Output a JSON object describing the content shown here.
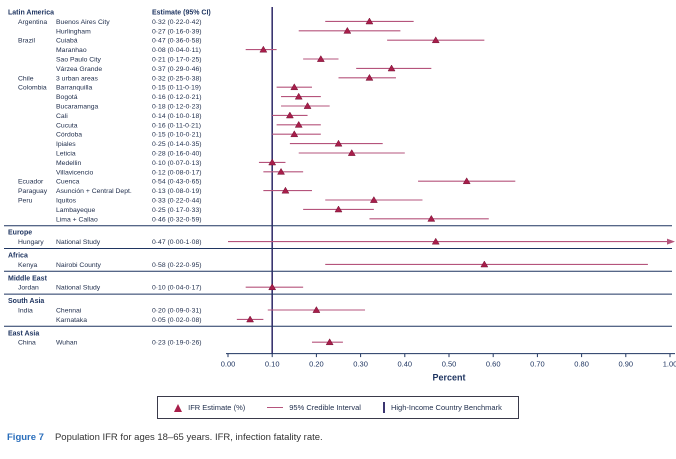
{
  "colors": {
    "accent": "#a81e4a",
    "accent_dark": "#741235",
    "ci": "#b5547c",
    "navy": "#1f3561",
    "text": "#22304e",
    "benchmark": "#3a3570",
    "figure_blue": "#2a6ebb"
  },
  "chart_data": {
    "type": "forest",
    "title": "",
    "xlabel": "Percent",
    "ylabel": "",
    "xlim": [
      0,
      1.0
    ],
    "grid": false,
    "estimate_header": "Estimate (95% CI)",
    "benchmark_x": 0.1,
    "xticks": [
      {
        "value": 0.0,
        "label": "0.00"
      },
      {
        "value": 0.1,
        "label": "0.10"
      },
      {
        "value": 0.2,
        "label": "0.20"
      },
      {
        "value": 0.3,
        "label": "0.30"
      },
      {
        "value": 0.4,
        "label": "0.40"
      },
      {
        "value": 0.5,
        "label": "0.50"
      },
      {
        "value": 0.6,
        "label": "0.60"
      },
      {
        "value": 0.7,
        "label": "0.70"
      },
      {
        "value": 0.8,
        "label": "0.80"
      },
      {
        "value": 0.9,
        "label": "0.90"
      },
      {
        "value": 1.0,
        "label": "1.00"
      }
    ],
    "regions": [
      {
        "name": "Latin America",
        "rows": [
          {
            "country": "Argentina",
            "site": "Buenos Aires City",
            "estimate": "0·32 (0·22-0·42)",
            "est": 0.32,
            "lo": 0.22,
            "hi": 0.42
          },
          {
            "country": "",
            "site": "Hurlingham",
            "estimate": "0·27 (0·16-0·39)",
            "est": 0.27,
            "lo": 0.16,
            "hi": 0.39
          },
          {
            "country": "Brazil",
            "site": "Cuiabá",
            "estimate": "0·47 (0·36-0·58)",
            "est": 0.47,
            "lo": 0.36,
            "hi": 0.58
          },
          {
            "country": "",
            "site": "Maranhao",
            "estimate": "0·08 (0·04-0·11)",
            "est": 0.08,
            "lo": 0.04,
            "hi": 0.11
          },
          {
            "country": "",
            "site": "Sao Paulo City",
            "estimate": "0·21 (0·17-0·25)",
            "est": 0.21,
            "lo": 0.17,
            "hi": 0.25
          },
          {
            "country": "",
            "site": "Várzea Grande",
            "estimate": "0·37 (0·29-0·46)",
            "est": 0.37,
            "lo": 0.29,
            "hi": 0.46
          },
          {
            "country": "Chile",
            "site": "3 urban areas",
            "estimate": "0·32 (0·25-0·38)",
            "est": 0.32,
            "lo": 0.25,
            "hi": 0.38
          },
          {
            "country": "Colombia",
            "site": "Barranquilla",
            "estimate": "0·15 (0·11-0·19)",
            "est": 0.15,
            "lo": 0.11,
            "hi": 0.19
          },
          {
            "country": "",
            "site": "Bogotá",
            "estimate": "0·16 (0·12-0·21)",
            "est": 0.16,
            "lo": 0.12,
            "hi": 0.21
          },
          {
            "country": "",
            "site": "Bucaramanga",
            "estimate": "0·18 (0·12-0·23)",
            "est": 0.18,
            "lo": 0.12,
            "hi": 0.23
          },
          {
            "country": "",
            "site": "Cali",
            "estimate": "0·14 (0·10-0·18)",
            "est": 0.14,
            "lo": 0.1,
            "hi": 0.18
          },
          {
            "country": "",
            "site": "Cucuta",
            "estimate": "0·16 (0·11-0·21)",
            "est": 0.16,
            "lo": 0.11,
            "hi": 0.21
          },
          {
            "country": "",
            "site": "Córdoba",
            "estimate": "0·15 (0·10-0·21)",
            "est": 0.15,
            "lo": 0.1,
            "hi": 0.21
          },
          {
            "country": "",
            "site": "Ipiales",
            "estimate": "0·25 (0·14-0·35)",
            "est": 0.25,
            "lo": 0.14,
            "hi": 0.35
          },
          {
            "country": "",
            "site": "Leticia",
            "estimate": "0·28 (0·16-0·40)",
            "est": 0.28,
            "lo": 0.16,
            "hi": 0.4
          },
          {
            "country": "",
            "site": "Medellin",
            "estimate": "0·10 (0·07-0·13)",
            "est": 0.1,
            "lo": 0.07,
            "hi": 0.13
          },
          {
            "country": "",
            "site": "Villavicencio",
            "estimate": "0·12 (0·08-0·17)",
            "est": 0.12,
            "lo": 0.08,
            "hi": 0.17
          },
          {
            "country": "Ecuador",
            "site": "Cuenca",
            "estimate": "0·54 (0·43-0·65)",
            "est": 0.54,
            "lo": 0.43,
            "hi": 0.65
          },
          {
            "country": "Paraguay",
            "site": "Asunción + Central Dept.",
            "estimate": "0·13 (0·08-0·19)",
            "est": 0.13,
            "lo": 0.08,
            "hi": 0.19
          },
          {
            "country": "Peru",
            "site": "Iquitos",
            "estimate": "0·33 (0·22-0·44)",
            "est": 0.33,
            "lo": 0.22,
            "hi": 0.44
          },
          {
            "country": "",
            "site": "Lambayeque",
            "estimate": "0·25 (0·17-0·33)",
            "est": 0.25,
            "lo": 0.17,
            "hi": 0.33
          },
          {
            "country": "",
            "site": "Lima + Callao",
            "estimate": "0·46 (0·32-0·59)",
            "est": 0.46,
            "lo": 0.32,
            "hi": 0.59
          }
        ]
      },
      {
        "name": "Europe",
        "rows": [
          {
            "country": "Hungary",
            "site": "National Study",
            "estimate": "0·47 (0·00-1·08)",
            "est": 0.47,
            "lo": 0.0,
            "hi": 1.08,
            "arrow": true
          }
        ]
      },
      {
        "name": "Africa",
        "rows": [
          {
            "country": "Kenya",
            "site": "Nairobi County",
            "estimate": "0·58 (0·22-0·95)",
            "est": 0.58,
            "lo": 0.22,
            "hi": 0.95
          }
        ]
      },
      {
        "name": "Middle East",
        "rows": [
          {
            "country": "Jordan",
            "site": "National Study",
            "estimate": "0·10 (0·04-0·17)",
            "est": 0.1,
            "lo": 0.04,
            "hi": 0.17
          }
        ]
      },
      {
        "name": "South Asia",
        "rows": [
          {
            "country": "India",
            "site": "Chennai",
            "estimate": "0·20 (0·09-0·31)",
            "est": 0.2,
            "lo": 0.09,
            "hi": 0.31
          },
          {
            "country": "",
            "site": "Karnataka",
            "estimate": "0·05 (0·02-0·08)",
            "est": 0.05,
            "lo": 0.02,
            "hi": 0.08
          }
        ]
      },
      {
        "name": "East Asia",
        "rows": [
          {
            "country": "China",
            "site": "Wuhan",
            "estimate": "0·23 (0·19-0·26)",
            "est": 0.23,
            "lo": 0.19,
            "hi": 0.26
          }
        ]
      }
    ]
  },
  "legend": {
    "items": [
      {
        "label": "IFR Estimate (%)"
      },
      {
        "label": "95% Credible Interval"
      },
      {
        "label": "High-Income Country Benchmark"
      }
    ]
  },
  "caption": {
    "figure_label": "Figure 7",
    "text": "Population IFR for ages 18–65 years. IFR, infection fatality rate."
  }
}
